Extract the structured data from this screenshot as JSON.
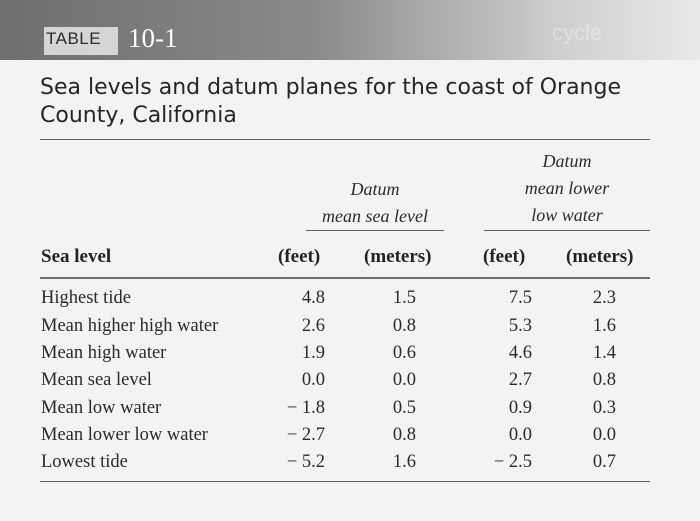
{
  "banner": {
    "label": "TABLE",
    "number": "10-1",
    "ghost_text": "cycle"
  },
  "title": "Sea levels and datum planes for the coast of Orange County, California",
  "group_headers": {
    "msl": [
      "Datum",
      "mean sea level"
    ],
    "mllw": [
      "Datum",
      "mean lower",
      "low water"
    ]
  },
  "columns": {
    "sea_level": "Sea level",
    "msl_feet": "(feet)",
    "msl_meters": "(meters)",
    "mllw_feet": "(feet)",
    "mllw_meters": "(meters)"
  },
  "rows": [
    {
      "label": "Highest tide",
      "msl_feet": "4.8",
      "msl_meters": "1.5",
      "mllw_feet": "7.5",
      "mllw_meters": "2.3"
    },
    {
      "label": "Mean higher high water",
      "msl_feet": "2.6",
      "msl_meters": "0.8",
      "mllw_feet": "5.3",
      "mllw_meters": "1.6"
    },
    {
      "label": "Mean high water",
      "msl_feet": "1.9",
      "msl_meters": "0.6",
      "mllw_feet": "4.6",
      "mllw_meters": "1.4"
    },
    {
      "label": "Mean sea level",
      "msl_feet": "0.0",
      "msl_meters": "0.0",
      "mllw_feet": "2.7",
      "mllw_meters": "0.8"
    },
    {
      "label": "Mean low water",
      "msl_feet": "− 1.8",
      "msl_meters": "0.5",
      "mllw_feet": "0.9",
      "mllw_meters": "0.3"
    },
    {
      "label": "Mean lower low water",
      "msl_feet": "− 2.7",
      "msl_meters": "0.8",
      "mllw_feet": "0.0",
      "mllw_meters": "0.0"
    },
    {
      "label": "Lowest tide",
      "msl_feet": "− 5.2",
      "msl_meters": "1.6",
      "mllw_feet": "− 2.5",
      "mllw_meters": "0.7"
    }
  ]
}
